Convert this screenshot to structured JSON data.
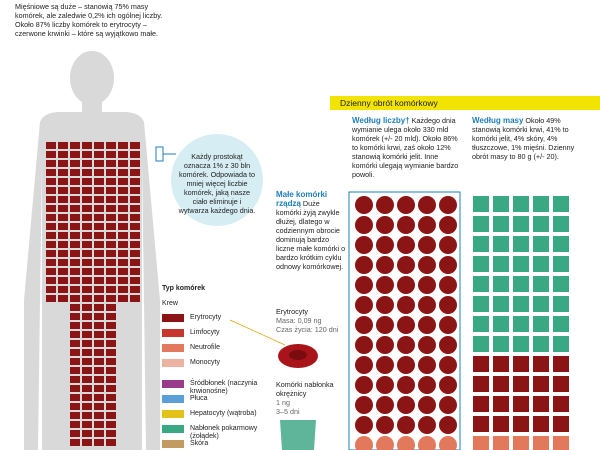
{
  "intro": "Mięśniowe są duże – stanowią 75% masy komórek, ale zaledwie 0,2% ich ogólnej liczby. Około 87% liczby komórek to erytrocyty – czerwone krwinki – które są wyjątkowo małe.",
  "bubble": "Każdy prostokąt oznacza 1% z 30 bln komórek. Odpowiada to mniej więcej liczbie komórek, jaką nasze ciało eliminuje i wytwarza każdego dnia.",
  "turnover": {
    "title": "Dzienny obrót komórkowy",
    "by_count": {
      "heading": "Według liczby†",
      "text": "Każdego dnia wymianie ulega około 330 mld komórek (+/- 20 mld). Około 86% to komórki krwi, zaś około 12% stanowią komórki jelit. Inne komórki ulegają wymianie bardzo powoli."
    },
    "by_mass": {
      "heading": "Według masy",
      "text": "Około 49% stanowią komórki krwi, 41% to komórki jelit, 4% skóry, 4% tłuszczowe, 1% mięśni. Dzienny obrót masy to 80 g (+/- 20)."
    }
  },
  "small_cells": {
    "heading": "Małe komórki rządzą",
    "text": "Duże komórki żyją zwykle dłużej, dlatego w codziennym obrocie dominują bardzo liczne małe komórki o bardzo krótkim cyklu odnowy komórkowej."
  },
  "legend": {
    "title": "Typ komórek",
    "group": "Krew",
    "items": [
      {
        "label": "Erytrocyty",
        "color": "#8b1414"
      },
      {
        "label": "Limfocyty",
        "color": "#c8372d"
      },
      {
        "label": "Neutrofile",
        "color": "#e2795c"
      },
      {
        "label": "Monocyty",
        "color": "#eab3a2"
      },
      {
        "label": "Śródbłonek (naczynia krwionośne)",
        "color": "#9a3c8e"
      },
      {
        "label": "Płuca",
        "color": "#5a9fd6"
      },
      {
        "label": "Hepatocyty (wątroba)",
        "color": "#e3c21a"
      },
      {
        "label": "Nabłonek pokarmowy (żołądek)",
        "color": "#3aa882"
      },
      {
        "label": "Skóra",
        "color": "#c49a63"
      }
    ]
  },
  "erythrocyte": {
    "name": "Erytrocyty",
    "mass": "Masa: 0,09 ng",
    "lifespan": "Czas życia: 120 dni"
  },
  "colon": {
    "name": "Komórki nabłonka okrężnicy",
    "mass": "1 ng",
    "lifespan": "3–5 dni"
  }
}
